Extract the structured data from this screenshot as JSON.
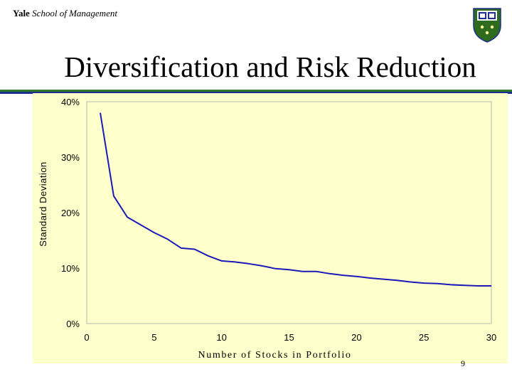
{
  "header": {
    "brand_bold": "Yale",
    "brand_italic": "School of Management",
    "crest_icon": "yale-shield-crest"
  },
  "slide": {
    "title": "Diversification and Risk Reduction",
    "page_number": "9"
  },
  "colors": {
    "plot_bg": "#ffffcc",
    "line": "#1a1ab8",
    "rule_green": "#2f7a2f",
    "rule_blue": "#1c2f8c",
    "crest_green": "#2e6b1e",
    "crest_blue": "#1e2f8c"
  },
  "chart_data": {
    "type": "line",
    "title": "",
    "xlabel": "Number of Stocks in Portfolio",
    "ylabel": "Standard Deviation",
    "xlim": [
      0,
      30
    ],
    "ylim": [
      0,
      40
    ],
    "x_ticks": [
      "0",
      "5",
      "10",
      "15",
      "20",
      "25",
      "30"
    ],
    "y_ticks": [
      "0%",
      "10%",
      "20%",
      "30%",
      "40%"
    ],
    "grid": false,
    "legend": "none",
    "series": [
      {
        "x": [
          1,
          2,
          3,
          4,
          5,
          6,
          7,
          8,
          9,
          10,
          11,
          12,
          13,
          14,
          15,
          16,
          17,
          18,
          19,
          20,
          21,
          22,
          23,
          24,
          25,
          26,
          27,
          28,
          29,
          30
        ],
        "values": [
          38.0,
          23.0,
          19.2,
          17.8,
          16.4,
          15.2,
          13.6,
          13.4,
          12.2,
          11.3,
          11.1,
          10.8,
          10.4,
          9.9,
          9.7,
          9.4,
          9.4,
          9.0,
          8.7,
          8.5,
          8.2,
          8.0,
          7.8,
          7.5,
          7.3,
          7.2,
          7.0,
          6.9,
          6.8,
          6.8
        ]
      }
    ]
  }
}
